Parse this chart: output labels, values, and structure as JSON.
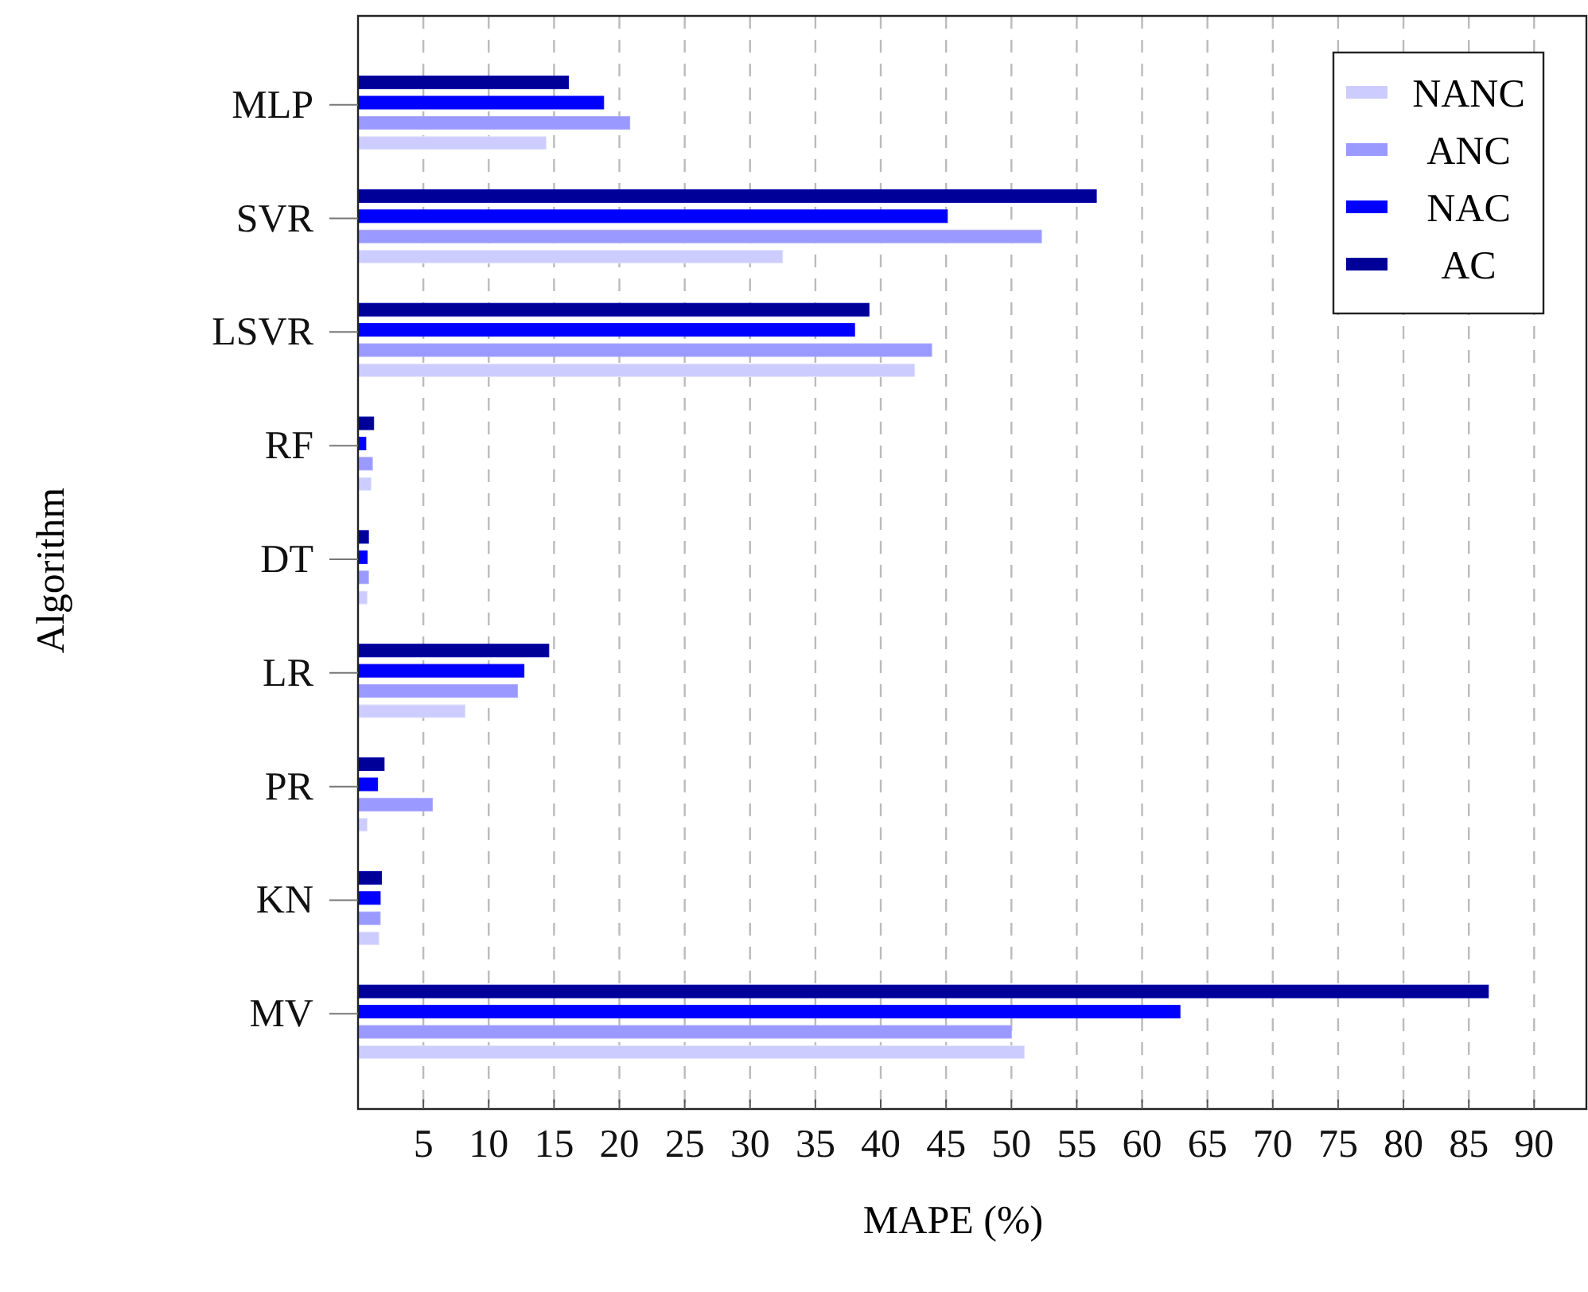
{
  "chart_data": {
    "type": "bar",
    "orientation": "horizontal",
    "xlabel": "MAPE (%)",
    "ylabel": "Algorithm",
    "categories": [
      "MLP",
      "SVR",
      "LSVR",
      "RF",
      "DT",
      "LR",
      "PR",
      "KN",
      "MV"
    ],
    "series": [
      {
        "name": "NANC",
        "color": "#ccccff",
        "values": [
          14.4,
          32.5,
          42.6,
          1.0,
          0.7,
          8.2,
          0.7,
          1.6,
          51.0
        ]
      },
      {
        "name": "ANC",
        "color": "#9999ff",
        "values": [
          20.8,
          52.3,
          43.9,
          1.1,
          0.8,
          12.2,
          5.7,
          1.7,
          50.0
        ]
      },
      {
        "name": "NAC",
        "color": "#0000ff",
        "values": [
          18.8,
          45.1,
          38.0,
          0.6,
          0.7,
          12.7,
          1.5,
          1.7,
          62.9
        ]
      },
      {
        "name": "AC",
        "color": "#000099",
        "values": [
          16.1,
          56.5,
          39.1,
          1.2,
          0.8,
          14.6,
          2.0,
          1.8,
          86.5
        ]
      }
    ],
    "xlim": [
      0,
      94
    ],
    "xticks": [
      5,
      10,
      15,
      20,
      25,
      30,
      35,
      40,
      45,
      50,
      55,
      60,
      65,
      70,
      75,
      80,
      85,
      90
    ],
    "grid": "x",
    "legend": "top right"
  }
}
